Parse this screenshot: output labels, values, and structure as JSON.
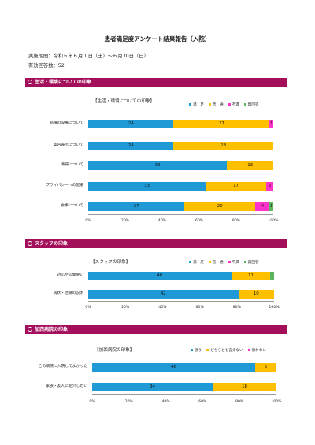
{
  "report": {
    "title": "患者満足度アンケート結果報告（入院）",
    "period": "実施期間：令和６年６月１日（土）～６月30日（日）",
    "responses": "有効回答数：52"
  },
  "sections": [
    {
      "heading": "生活・環境についての印象"
    },
    {
      "heading": "スタッフの印象"
    },
    {
      "heading": "加西病院の印象"
    }
  ],
  "colors": {
    "band": "#a30f5a",
    "satisfied": "#1f9ad6",
    "neutral": "#ffc000",
    "dissatisfied": "#ff33cc",
    "no_answer": "#5cb85c",
    "axis": "#999999"
  },
  "chart_data": [
    {
      "type": "bar",
      "orientation": "horizontal-stacked",
      "title": "【生活・環境についての印象】",
      "categories": [
        "病棟の設備について",
        "案内表示について",
        "清掃について",
        "プライバシーへの配慮",
        "食事について"
      ],
      "series": [
        {
          "name": "満　足",
          "values": [
            24,
            24,
            39,
            33,
            27
          ]
        },
        {
          "name": "普　通",
          "values": [
            27,
            28,
            13,
            17,
            20
          ]
        },
        {
          "name": "不満",
          "values": [
            1,
            0,
            0,
            2,
            4
          ]
        },
        {
          "name": "無回答",
          "values": [
            0,
            0,
            0,
            0,
            1
          ]
        }
      ],
      "xticks": [
        "0%",
        "20%",
        "40%",
        "60%",
        "80%",
        "100%"
      ],
      "xlim": [
        0,
        100
      ]
    },
    {
      "type": "bar",
      "orientation": "horizontal-stacked",
      "title": "【スタッフの印象】",
      "categories": [
        "対応や言葉使い",
        "病状・治療の説明"
      ],
      "series": [
        {
          "name": "満　足",
          "values": [
            40,
            42
          ]
        },
        {
          "name": "普　通",
          "values": [
            11,
            10
          ]
        },
        {
          "name": "不満",
          "values": [
            0,
            0
          ]
        },
        {
          "name": "無回答",
          "values": [
            1,
            0
          ]
        }
      ],
      "xticks": [
        "0%",
        "20%",
        "40%",
        "60%",
        "80%",
        "100%"
      ],
      "xlim": [
        0,
        100
      ]
    },
    {
      "type": "bar",
      "orientation": "horizontal-stacked",
      "title": "【加西病院の印象】",
      "categories": [
        "この病院に入院してよかった",
        "家族・友人に紹介したい"
      ],
      "series": [
        {
          "name": "思う",
          "values": [
            46,
            34
          ]
        },
        {
          "name": "どちらとも言えない",
          "values": [
            6,
            18
          ]
        },
        {
          "name": "思わない",
          "values": [
            0,
            0
          ]
        }
      ],
      "xticks": [
        "0%",
        "20%",
        "40%",
        "60%",
        "80%",
        "100%"
      ],
      "xlim": [
        0,
        100
      ]
    }
  ]
}
